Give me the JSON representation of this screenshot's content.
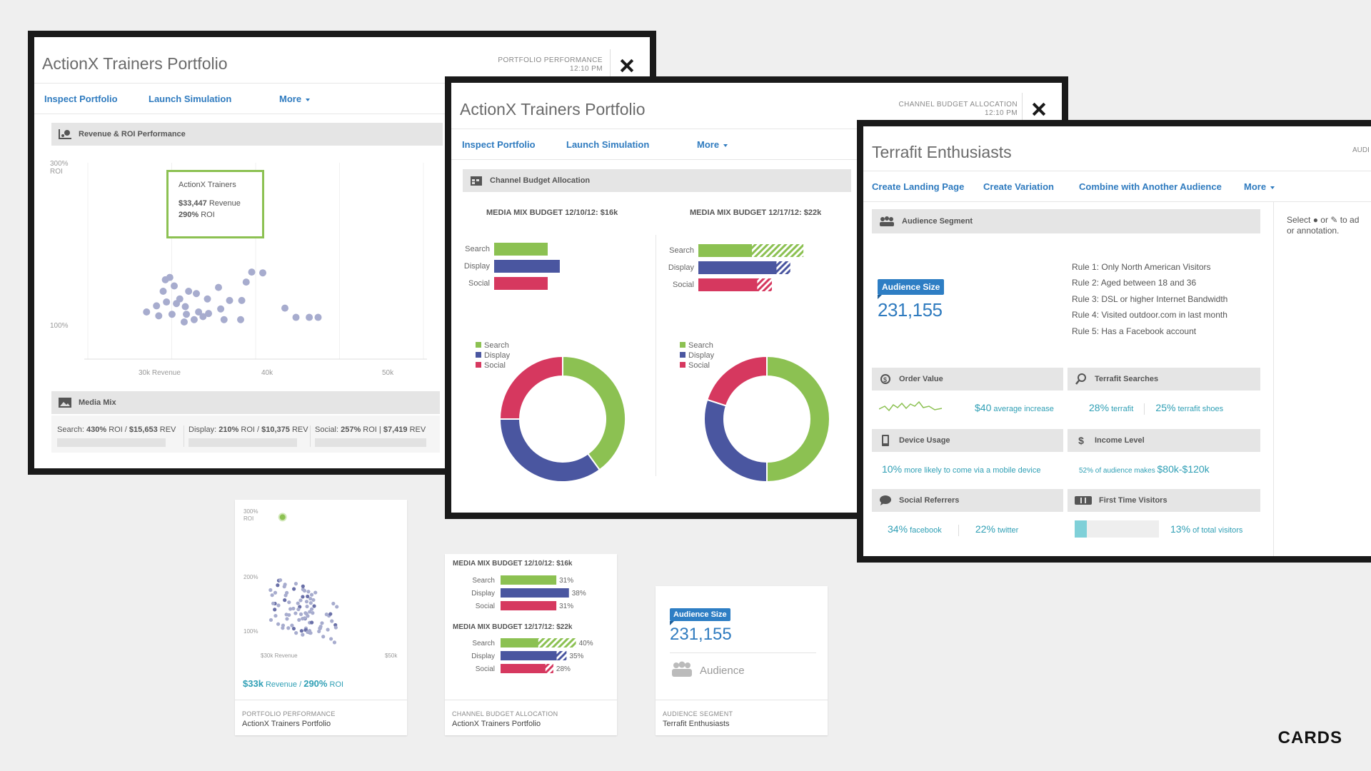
{
  "brand": "CARDS",
  "win1": {
    "title": "ActionX Trainers Portfolio",
    "meta_line1": "PORTFOLIO PERFORMANCE",
    "meta_line2": "12:10 PM",
    "nav": [
      "Inspect Portfolio",
      "Launch Simulation",
      "More"
    ],
    "section1": "Revenue & ROI Performance",
    "section2": "Media Mix",
    "chart": {
      "y_top": "300%",
      "y_top2": "ROI",
      "y_mid": "100%",
      "x_labels": [
        "30k Revenue",
        "40k",
        "50k"
      ]
    },
    "tooltip": {
      "name": "ActionX Trainers",
      "revenue": "$33,447",
      "revenue_unit": "Revenue",
      "roi": "290%",
      "roi_unit": "ROI"
    },
    "media_mix": [
      {
        "label": "Search:",
        "roi": "430%",
        "roi_unit": "ROI /",
        "rev": "$15,653",
        "rev_unit": "REV"
      },
      {
        "label": "Display:",
        "roi": "210%",
        "roi_unit": "ROI /",
        "rev": "$10,375",
        "rev_unit": "REV"
      },
      {
        "label": "Social:",
        "roi": "257%",
        "roi_unit": "ROI |",
        "rev": "$7,419",
        "rev_unit": "REV"
      }
    ]
  },
  "win2": {
    "title": "ActionX Trainers Portfolio",
    "meta_line1": "CHANNEL BUDGET ALLOCATION",
    "meta_line2": "12:10 PM",
    "nav": [
      "Inspect Portfolio",
      "Launch Simulation",
      "More"
    ],
    "section": "Channel Budget Allocation",
    "budget1_title": "MEDIA MIX BUDGET 12/10/12: $16k",
    "budget2_title": "MEDIA MIX BUDGET 12/17/12: $22k",
    "channels": [
      "Search",
      "Display",
      "Social"
    ]
  },
  "win3": {
    "title": "Terrafit Enthusiasts",
    "meta_clip": "AUDI",
    "nav": [
      "Create Landing Page",
      "Create Variation",
      "Combine with Another Audience",
      "More"
    ],
    "section": "Audience Segment",
    "badge": "Audience Size",
    "size": "231,155",
    "rules": [
      "Rule 1: Only North American Visitors",
      "Rule 2: Aged between 18 and 36",
      "Rule 3: DSL or higher Internet Bandwidth",
      "Rule 4: Visited outdoor.com in last month",
      "Rule 5: Has a Facebook account"
    ],
    "side_note_1": "Select",
    "side_note_or": "or",
    "side_note_2": "to ad",
    "side_note_3": "or annotation.",
    "tiles": {
      "order_value": {
        "title": "Order Value",
        "value": "$40",
        "text": "average increase"
      },
      "terrafit_searches": {
        "title": "Terrafit Searches",
        "v1": "28%",
        "t1": "terrafit",
        "v2": "25%",
        "t2": "terrafit shoes"
      },
      "device_usage": {
        "title": "Device Usage",
        "value": "10%",
        "text": "more likely to come via a mobile device"
      },
      "income_level": {
        "title": "Income Level",
        "text": "52% of audience makes",
        "value": "$80k-$120k"
      },
      "social_referrers": {
        "title": "Social Referrers",
        "v1": "34%",
        "t1": "facebook",
        "v2": "22%",
        "t2": "twitter"
      },
      "first_time": {
        "title": "First Time Visitors",
        "value": "13%",
        "text": "of total visitors",
        "fill": 0.13
      }
    }
  },
  "card1": {
    "y_top": "300%",
    "y_top2": "ROI",
    "y_mid": "200%",
    "y_low": "100%",
    "x_left": "$30k Revenue",
    "x_right": "$50k",
    "rev": "$33k",
    "rev_unit": "Revenue",
    "slash": "/",
    "roi": "290%",
    "roi_unit": "ROI",
    "foot_k": "PORTFOLIO PERFORMANCE",
    "foot_v": "ActionX Trainers Portfolio"
  },
  "card2": {
    "title1": "MEDIA MIX BUDGET 12/10/12: $16k",
    "title2": "MEDIA MIX BUDGET 12/17/12: $22k",
    "channels": [
      "Search",
      "Display",
      "Social"
    ],
    "pcts1": [
      "31%",
      "38%",
      "31%"
    ],
    "pcts2": [
      "40%",
      "35%",
      "28%"
    ],
    "foot_k": "CHANNEL BUDGET ALLOCATION",
    "foot_v": "ActionX Trainers Portfolio"
  },
  "card3": {
    "badge": "Audience Size",
    "size": "231,155",
    "label": "Audience",
    "foot_k": "AUDIENCE SEGMENT",
    "foot_v": "Terrafit Enthusiasts"
  },
  "colors": {
    "search": "#8cc152",
    "display": "#4a56a0",
    "social": "#d6385f",
    "accent": "#2f7bbf",
    "teal": "#2f9fb5"
  },
  "chart_data": [
    {
      "type": "bar",
      "title": "MEDIA MIX BUDGET 12/10/12: $16k",
      "categories": [
        "Search",
        "Display",
        "Social"
      ],
      "values": [
        31,
        38,
        31
      ]
    },
    {
      "type": "bar",
      "title": "MEDIA MIX BUDGET 12/17/12: $22k",
      "categories": [
        "Search",
        "Display",
        "Social"
      ],
      "values": [
        40,
        35,
        28
      ]
    },
    {
      "type": "pie",
      "categories": [
        "Search",
        "Display",
        "Social"
      ],
      "values": [
        40,
        35,
        25
      ]
    },
    {
      "type": "pie",
      "categories": [
        "Search",
        "Display",
        "Social"
      ],
      "values": [
        50,
        30,
        20
      ]
    },
    {
      "type": "scatter",
      "highlight": {
        "x": 33447,
        "y": 290
      },
      "points": [
        {
          "x": 31,
          "y": 140
        },
        {
          "x": 31.2,
          "y": 155
        },
        {
          "x": 31.6,
          "y": 158
        },
        {
          "x": 32,
          "y": 147
        },
        {
          "x": 32.5,
          "y": 130
        },
        {
          "x": 33,
          "y": 120
        },
        {
          "x": 33.3,
          "y": 140
        },
        {
          "x": 34,
          "y": 137
        },
        {
          "x": 35,
          "y": 130
        },
        {
          "x": 36,
          "y": 145
        },
        {
          "x": 37,
          "y": 128
        },
        {
          "x": 38.5,
          "y": 152
        },
        {
          "x": 39,
          "y": 165
        },
        {
          "x": 40,
          "y": 164
        },
        {
          "x": 42,
          "y": 118
        },
        {
          "x": 43,
          "y": 106
        },
        {
          "x": 44.2,
          "y": 106
        },
        {
          "x": 45,
          "y": 106
        },
        {
          "x": 30.6,
          "y": 108
        },
        {
          "x": 31.8,
          "y": 110
        },
        {
          "x": 32.9,
          "y": 100
        },
        {
          "x": 34.2,
          "y": 113
        },
        {
          "x": 35.1,
          "y": 111
        },
        {
          "x": 36.5,
          "y": 103
        },
        {
          "x": 38,
          "y": 103
        },
        {
          "x": 29.5,
          "y": 113
        },
        {
          "x": 30.4,
          "y": 121
        },
        {
          "x": 31.3,
          "y": 126
        },
        {
          "x": 32.2,
          "y": 124
        },
        {
          "x": 33.1,
          "y": 110
        },
        {
          "x": 33.8,
          "y": 103
        },
        {
          "x": 34.6,
          "y": 107
        },
        {
          "x": 36.2,
          "y": 117
        },
        {
          "x": 38.1,
          "y": 128
        }
      ]
    }
  ]
}
